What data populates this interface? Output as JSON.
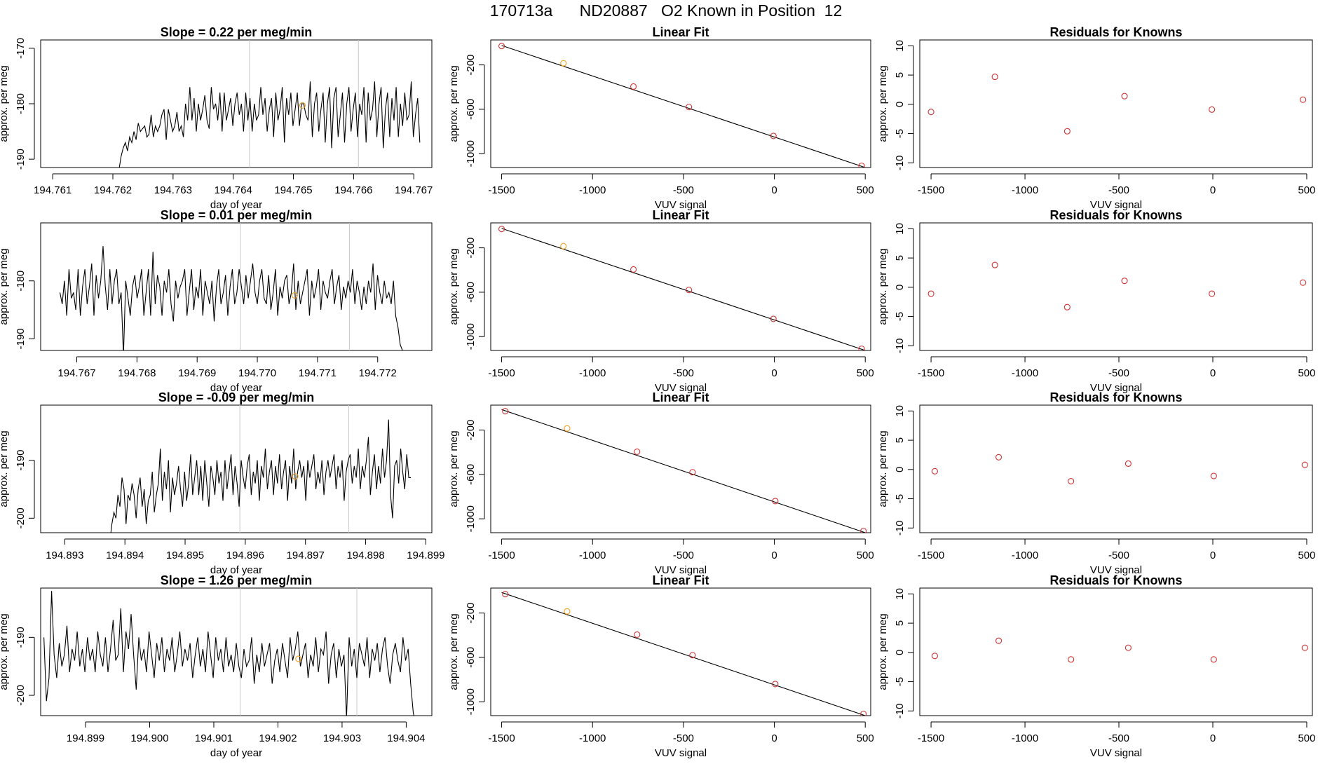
{
  "page": {
    "title": "170713a      ND20887   O2 Known in Position  12"
  },
  "colors": {
    "line": "#000000",
    "known_point": "#d03030",
    "highlight_point": "#f0a020",
    "marker_line": "#c8c8c8"
  },
  "chart_data": [
    {
      "type": "line",
      "row": 0,
      "panel": "timeseries",
      "title": "Slope =  0.22  per meg/min",
      "xlabel": "day of year",
      "ylabel": "approx. per meg",
      "xlim": [
        194.7608,
        194.7673
      ],
      "ylim": [
        -191.5,
        -168.5
      ],
      "xticks": [
        "194.761",
        "194.762",
        "194.763",
        "194.764",
        "194.765",
        "194.766",
        "194.767"
      ],
      "yticks": [
        "-170",
        "-180",
        "-190"
      ],
      "x_start": 194.7621,
      "x_end": 194.7671,
      "y": [
        -192,
        -189.5,
        -188,
        -187,
        -188.5,
        -186,
        -187,
        -185,
        -186.5,
        -183.5,
        -185,
        -184.5,
        -184,
        -186,
        -185.5,
        -182,
        -186,
        -184,
        -185,
        -184,
        -182,
        -181,
        -186.5,
        -181,
        -183,
        -185,
        -184,
        -181.5,
        -185,
        -184,
        -186,
        -180,
        -183,
        -177,
        -183,
        -179,
        -185,
        -180,
        -183,
        -181,
        -178.5,
        -183,
        -184.5,
        -177,
        -181,
        -180,
        -183,
        -178,
        -185,
        -178,
        -183,
        -181,
        -179,
        -184,
        -180,
        -178,
        -182,
        -180,
        -185,
        -178,
        -183,
        -179,
        -185,
        -180,
        -183,
        -182,
        -177,
        -182,
        -179,
        -185,
        -181,
        -179,
        -186,
        -178,
        -183,
        -181,
        -177,
        -187,
        -179,
        -182,
        -178,
        -184,
        -181,
        -178,
        -184,
        -180,
        -180,
        -182,
        -183,
        -176,
        -186,
        -180,
        -178,
        -185,
        -181,
        -178,
        -187,
        -180,
        -177,
        -188,
        -179,
        -177,
        -186,
        -182,
        -178,
        -187,
        -180,
        -177,
        -185,
        -181,
        -178,
        -186,
        -180,
        -182,
        -177,
        -187,
        -178,
        -183,
        -181,
        -176,
        -186,
        -180,
        -177,
        -188,
        -181,
        -178,
        -186,
        -179,
        -183,
        -177,
        -186,
        -180,
        -184,
        -178,
        -183,
        -182,
        -176,
        -186,
        -182,
        -179,
        -187
      ],
      "vlines": [
        194.76427,
        194.76608
      ],
      "highlight": {
        "x": 194.76515,
        "y": -180.3
      }
    },
    {
      "type": "scatter",
      "row": 0,
      "panel": "linear_fit",
      "title": "Linear Fit",
      "xlabel": "VUV signal",
      "ylabel": "approx. per meg",
      "xlim": [
        -1560,
        530
      ],
      "ylim": [
        -1125,
        25
      ],
      "xticks": [
        -1500,
        -1000,
        -500,
        0,
        500
      ],
      "yticks": [
        -200,
        -600,
        -1000
      ],
      "points": [
        [
          -1500,
          -30
        ],
        [
          -1160,
          -185
        ],
        [
          -775,
          -395
        ],
        [
          -470,
          -580
        ],
        [
          -5,
          -840
        ],
        [
          480,
          -1110
        ]
      ],
      "highlight_index": 1,
      "fit_line": [
        [
          -1500,
          -25
        ],
        [
          500,
          -1125
        ]
      ]
    },
    {
      "type": "scatter",
      "row": 0,
      "panel": "residuals",
      "title": "Residuals for Knowns",
      "xlabel": "VUV signal",
      "ylabel": "approx. per meg",
      "xlim": [
        -1560,
        530
      ],
      "ylim": [
        -10.8,
        11
      ],
      "xticks": [
        -1500,
        -1000,
        -500,
        0,
        500
      ],
      "yticks": [
        10,
        5,
        0,
        -5,
        -10
      ],
      "points": [
        [
          -1500,
          -1.3
        ],
        [
          -1160,
          4.7
        ],
        [
          -775,
          -4.6
        ],
        [
          -470,
          1.4
        ],
        [
          -5,
          -0.9
        ],
        [
          480,
          0.8
        ]
      ]
    },
    {
      "type": "line",
      "row": 1,
      "panel": "timeseries",
      "title": "Slope =  0.01  per meg/min",
      "xlabel": "day of year",
      "ylabel": "approx. per meg",
      "xlim": [
        194.7664,
        194.7729
      ],
      "ylim": [
        -192,
        -170
      ],
      "xticks": [
        "194.767",
        "194.768",
        "194.769",
        "194.770",
        "194.771",
        "194.772"
      ],
      "yticks": [
        "-180",
        "-190"
      ],
      "x_start": 194.76672,
      "x_end": 194.77245,
      "y": [
        -182,
        -184,
        -180,
        -186,
        -178,
        -183,
        -182,
        -185,
        -178,
        -186,
        -181,
        -178,
        -184,
        -181,
        -177,
        -186,
        -179,
        -183,
        -180,
        -174,
        -181,
        -185,
        -178,
        -184,
        -180,
        -178,
        -184,
        -182,
        -193,
        -180,
        -183,
        -186,
        -181,
        -179,
        -183,
        -181,
        -178,
        -186,
        -182,
        -178,
        -186,
        -175,
        -184,
        -179,
        -181,
        -186,
        -180,
        -182,
        -178,
        -184,
        -187,
        -180,
        -183,
        -181,
        -180,
        -178,
        -186,
        -182,
        -178,
        -185,
        -181,
        -183,
        -178,
        -186,
        -180,
        -182,
        -184,
        -180,
        -187,
        -181,
        -178,
        -184,
        -182,
        -179,
        -186,
        -181,
        -178,
        -184,
        -182,
        -178,
        -181,
        -184,
        -179,
        -183,
        -180,
        -177,
        -182,
        -184,
        -180,
        -178,
        -183,
        -184,
        -179,
        -185,
        -182,
        -178,
        -186,
        -181,
        -183,
        -180,
        -179,
        -184,
        -182,
        -177,
        -185,
        -180,
        -184,
        -182,
        -180,
        -178,
        -186,
        -180,
        -183,
        -181,
        -178,
        -185,
        -180,
        -182,
        -183,
        -180,
        -178,
        -184,
        -181,
        -179,
        -185,
        -181,
        -183,
        -180,
        -182,
        -178,
        -184,
        -180,
        -182,
        -185,
        -181,
        -184,
        -180,
        -182,
        -177,
        -185,
        -179,
        -182,
        -184,
        -180,
        -183,
        -182,
        -184,
        -180,
        -186,
        -188,
        -191,
        -192,
        -193
      ],
      "vlines": [
        194.76972,
        194.77153
      ],
      "highlight": {
        "x": 194.77062,
        "y": -182.5
      }
    },
    {
      "type": "scatter",
      "row": 1,
      "panel": "linear_fit",
      "title": "Linear Fit",
      "xlabel": "VUV signal",
      "ylabel": "approx. per meg",
      "xlim": [
        -1560,
        530
      ],
      "ylim": [
        -1125,
        25
      ],
      "xticks": [
        -1500,
        -1000,
        -500,
        0,
        500
      ],
      "yticks": [
        -200,
        -600,
        -1000
      ],
      "points": [
        [
          -1500,
          -30
        ],
        [
          -1160,
          -185
        ],
        [
          -775,
          -395
        ],
        [
          -470,
          -580
        ],
        [
          -5,
          -840
        ],
        [
          480,
          -1110
        ]
      ],
      "highlight_index": 1,
      "fit_line": [
        [
          -1500,
          -25
        ],
        [
          500,
          -1125
        ]
      ]
    },
    {
      "type": "scatter",
      "row": 1,
      "panel": "residuals",
      "title": "Residuals for Knowns",
      "xlabel": "VUV signal",
      "ylabel": "approx. per meg",
      "xlim": [
        -1560,
        530
      ],
      "ylim": [
        -10.8,
        11
      ],
      "xticks": [
        -1500,
        -1000,
        -500,
        0,
        500
      ],
      "yticks": [
        10,
        5,
        0,
        -5,
        -10
      ],
      "points": [
        [
          -1500,
          -1.1
        ],
        [
          -1160,
          3.8
        ],
        [
          -775,
          -3.4
        ],
        [
          -470,
          1.1
        ],
        [
          -5,
          -1.1
        ],
        [
          480,
          0.8
        ]
      ]
    },
    {
      "type": "line",
      "row": 2,
      "panel": "timeseries",
      "title": "Slope =  -0.09  per meg/min",
      "xlabel": "day of year",
      "ylabel": "approx. per meg",
      "xlim": [
        194.8926,
        194.8991
      ],
      "ylim": [
        -202.5,
        -180.5
      ],
      "xticks": [
        "194.893",
        "194.894",
        "194.895",
        "194.896",
        "194.897",
        "194.898",
        "194.899"
      ],
      "yticks": [
        "-190",
        "-200"
      ],
      "x_start": 194.89375,
      "x_end": 194.89875,
      "y": [
        -204,
        -201,
        -199,
        -200,
        -196,
        -198,
        -193,
        -195,
        -201,
        -196,
        -197,
        -194,
        -196,
        -200,
        -195,
        -193,
        -198,
        -195,
        -201,
        -197,
        -196,
        -192,
        -199,
        -196,
        -194,
        -188,
        -197,
        -192,
        -195,
        -190,
        -199,
        -193,
        -196,
        -194,
        -191,
        -195,
        -198,
        -192,
        -197,
        -194,
        -189,
        -196,
        -193,
        -190,
        -196,
        -191,
        -197,
        -190,
        -194,
        -198,
        -191,
        -193,
        -196,
        -190,
        -194,
        -192,
        -197,
        -190,
        -195,
        -192,
        -189,
        -196,
        -191,
        -194,
        -198,
        -190,
        -193,
        -195,
        -191,
        -189,
        -196,
        -192,
        -194,
        -190,
        -197,
        -191,
        -193,
        -188,
        -195,
        -192,
        -190,
        -196,
        -191,
        -194,
        -189,
        -195,
        -192,
        -190,
        -197,
        -191,
        -194,
        -188,
        -195,
        -192,
        -190,
        -193,
        -191,
        -197,
        -190,
        -193,
        -191,
        -189,
        -195,
        -192,
        -194,
        -190,
        -196,
        -192,
        -190,
        -193,
        -191,
        -189,
        -195,
        -191,
        -193,
        -190,
        -197,
        -192,
        -190,
        -189,
        -194,
        -191,
        -193,
        -188,
        -195,
        -191,
        -193,
        -190,
        -186,
        -196,
        -192,
        -189,
        -195,
        -191,
        -194,
        -188,
        -193,
        -190,
        -183,
        -196,
        -200,
        -191,
        -190,
        -194,
        -188,
        -192,
        -195,
        -189,
        -193,
        -193
      ],
      "vlines": [
        194.89591,
        194.89772
      ],
      "highlight": {
        "x": 194.89683,
        "y": -192.8
      }
    },
    {
      "type": "scatter",
      "row": 2,
      "panel": "linear_fit",
      "title": "Linear Fit",
      "xlabel": "VUV signal",
      "ylabel": "approx. per meg",
      "xlim": [
        -1560,
        530
      ],
      "ylim": [
        -1125,
        25
      ],
      "xticks": [
        -1500,
        -1000,
        -500,
        0,
        500
      ],
      "yticks": [
        -200,
        -600,
        -1000
      ],
      "points": [
        [
          -1480,
          -30
        ],
        [
          -1140,
          -185
        ],
        [
          -755,
          -395
        ],
        [
          -450,
          -580
        ],
        [
          5,
          -840
        ],
        [
          490,
          -1110
        ]
      ],
      "highlight_index": 1,
      "fit_line": [
        [
          -1500,
          -15
        ],
        [
          500,
          -1125
        ]
      ]
    },
    {
      "type": "scatter",
      "row": 2,
      "panel": "residuals",
      "title": "Residuals for Knowns",
      "xlabel": "VUV signal",
      "ylabel": "approx. per meg",
      "xlim": [
        -1560,
        530
      ],
      "ylim": [
        -10.8,
        11
      ],
      "xticks": [
        -1500,
        -1000,
        -500,
        0,
        500
      ],
      "yticks": [
        10,
        5,
        0,
        -5,
        -10
      ],
      "points": [
        [
          -1480,
          -0.3
        ],
        [
          -1140,
          2.1
        ],
        [
          -755,
          -2.0
        ],
        [
          -450,
          1.0
        ],
        [
          5,
          -1.1
        ],
        [
          490,
          0.8
        ]
      ]
    },
    {
      "type": "line",
      "row": 3,
      "panel": "timeseries",
      "title": "Slope =  1.26  per meg/min",
      "xlabel": "day of year",
      "ylabel": "approx. per meg",
      "xlim": [
        194.8983,
        194.9044
      ],
      "ylim": [
        -203.5,
        -181.5
      ],
      "xticks": [
        "194.899",
        "194.900",
        "194.901",
        "194.902",
        "194.903",
        "194.904"
      ],
      "yticks": [
        "-190",
        "-200"
      ],
      "x_start": 194.89835,
      "x_end": 194.90415,
      "y": [
        -190,
        -201,
        -197,
        -182,
        -193,
        -197,
        -191,
        -195,
        -193,
        -188,
        -196,
        -192,
        -194,
        -189,
        -195,
        -192,
        -196,
        -190,
        -194,
        -192,
        -196,
        -189,
        -193,
        -195,
        -190,
        -196,
        -192,
        -187,
        -194,
        -193,
        -185,
        -196,
        -189,
        -192,
        -186,
        -193,
        -199,
        -190,
        -194,
        -192,
        -196,
        -189,
        -193,
        -197,
        -191,
        -194,
        -190,
        -196,
        -192,
        -194,
        -190,
        -196,
        -193,
        -189,
        -195,
        -192,
        -194,
        -191,
        -197,
        -193,
        -190,
        -195,
        -192,
        -196,
        -189,
        -193,
        -197,
        -190,
        -194,
        -192,
        -196,
        -190,
        -195,
        -193,
        -196,
        -191,
        -195,
        -197,
        -192,
        -195,
        -194,
        -190,
        -198,
        -193,
        -196,
        -191,
        -195,
        -193,
        -191,
        -198,
        -194,
        -192,
        -196,
        -191,
        -194,
        -197,
        -190,
        -194,
        -192,
        -189,
        -195,
        -193,
        -191,
        -197,
        -193,
        -195,
        -190,
        -196,
        -192,
        -193,
        -189,
        -198,
        -193,
        -191,
        -197,
        -192,
        -195,
        -193,
        -204,
        -190,
        -195,
        -192,
        -197,
        -191,
        -193,
        -195,
        -190,
        -197,
        -192,
        -194,
        -191,
        -196,
        -192,
        -190,
        -195,
        -198,
        -193,
        -191,
        -194,
        -196,
        -190,
        -194,
        -192,
        -198,
        -203,
        -205
      ],
      "vlines": [
        194.90141,
        194.90323
      ],
      "highlight": {
        "x": 194.90232,
        "y": -193.7
      }
    },
    {
      "type": "scatter",
      "row": 3,
      "panel": "linear_fit",
      "title": "Linear Fit",
      "xlabel": "VUV signal",
      "ylabel": "approx. per meg",
      "xlim": [
        -1560,
        530
      ],
      "ylim": [
        -1125,
        25
      ],
      "xticks": [
        -1500,
        -1000,
        -500,
        0,
        500
      ],
      "yticks": [
        -200,
        -600,
        -1000
      ],
      "points": [
        [
          -1480,
          -30
        ],
        [
          -1140,
          -185
        ],
        [
          -755,
          -395
        ],
        [
          -450,
          -580
        ],
        [
          5,
          -840
        ],
        [
          490,
          -1110
        ]
      ],
      "highlight_index": 1,
      "fit_line": [
        [
          -1500,
          -15
        ],
        [
          500,
          -1125
        ]
      ]
    },
    {
      "type": "scatter",
      "row": 3,
      "panel": "residuals",
      "title": "Residuals for Knowns",
      "xlabel": "VUV signal",
      "ylabel": "approx. per meg",
      "xlim": [
        -1560,
        530
      ],
      "ylim": [
        -10.8,
        11
      ],
      "xticks": [
        -1500,
        -1000,
        -500,
        0,
        500
      ],
      "yticks": [
        10,
        5,
        0,
        -5,
        -10
      ],
      "points": [
        [
          -1480,
          -0.6
        ],
        [
          -1140,
          2.0
        ],
        [
          -755,
          -1.2
        ],
        [
          -450,
          0.8
        ],
        [
          5,
          -1.2
        ],
        [
          490,
          0.8
        ]
      ]
    }
  ]
}
